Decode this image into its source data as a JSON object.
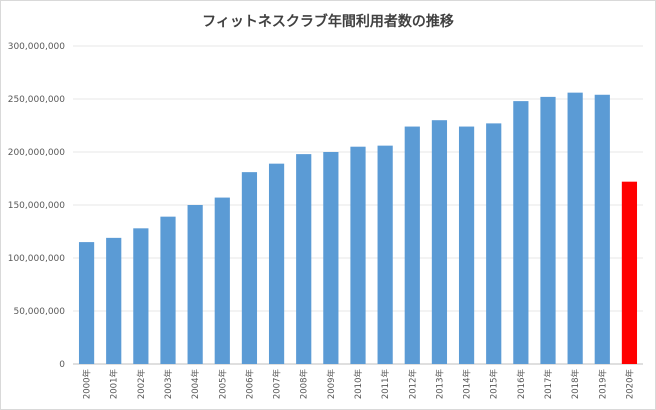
{
  "chart_data": {
    "type": "bar",
    "title": "フィットネスクラブ年間利用者数の推移",
    "xlabel": "",
    "ylabel": "",
    "categories": [
      "2000年",
      "2001年",
      "2002年",
      "2003年",
      "2004年",
      "2005年",
      "2006年",
      "2007年",
      "2008年",
      "2009年",
      "2010年",
      "2011年",
      "2012年",
      "2013年",
      "2014年",
      "2015年",
      "2016年",
      "2017年",
      "2018年",
      "2019年",
      "2020年"
    ],
    "values": [
      115000000,
      119000000,
      128000000,
      139000000,
      150000000,
      157000000,
      181000000,
      189000000,
      198000000,
      200000000,
      205000000,
      206000000,
      224000000,
      230000000,
      224000000,
      227000000,
      248000000,
      252000000,
      256000000,
      254000000,
      172000000
    ],
    "ylim": [
      0,
      300000000
    ],
    "yticks": [
      0,
      50000000,
      100000000,
      150000000,
      200000000,
      250000000,
      300000000
    ],
    "ytick_labels": [
      "0",
      "50,000,000",
      "100,000,000",
      "150,000,000",
      "200,000,000",
      "250,000,000",
      "300,000,000"
    ],
    "grid": true,
    "bar_color": "#5b9bd5",
    "highlight_color": "#ff0000",
    "highlight_index": 20
  }
}
